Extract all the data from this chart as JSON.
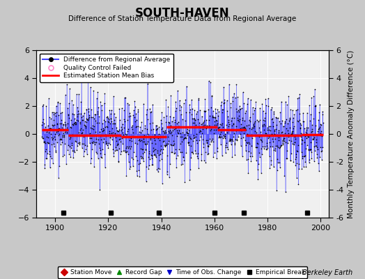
{
  "title": "SOUTH-HAVEN",
  "subtitle": "Difference of Station Temperature Data from Regional Average",
  "ylabel": "Monthly Temperature Anomaly Difference (°C)",
  "xlabel_years": [
    1900,
    1920,
    1940,
    1960,
    1980,
    2000
  ],
  "ylim": [
    -6,
    6
  ],
  "yticks": [
    -6,
    -4,
    -2,
    0,
    2,
    4,
    6
  ],
  "xlim": [
    1893,
    2003
  ],
  "fig_bg_color": "#c8c8c8",
  "plot_bg_color": "#f0f0f0",
  "grid_color": "#ffffff",
  "line_color": "#4444ff",
  "marker_color": "#000000",
  "bias_color": "#ff0000",
  "credit": "Berkeley Earth",
  "seed": 42,
  "x_start": 1895.0,
  "x_end": 2001.0,
  "months_per_year": 12,
  "bias_segments": [
    {
      "x_start": 1895.0,
      "x_end": 1905.0,
      "bias": 0.28
    },
    {
      "x_start": 1905.0,
      "x_end": 1925.0,
      "bias": -0.12
    },
    {
      "x_start": 1925.0,
      "x_end": 1942.0,
      "bias": -0.18
    },
    {
      "x_start": 1942.0,
      "x_end": 1961.0,
      "bias": 0.52
    },
    {
      "x_start": 1961.0,
      "x_end": 1972.0,
      "bias": 0.32
    },
    {
      "x_start": 1972.0,
      "x_end": 1993.0,
      "bias": -0.08
    },
    {
      "x_start": 1993.0,
      "x_end": 2001.0,
      "bias": -0.06
    }
  ],
  "empirical_breaks": [
    1903,
    1921,
    1939,
    1960,
    1971,
    1995
  ]
}
